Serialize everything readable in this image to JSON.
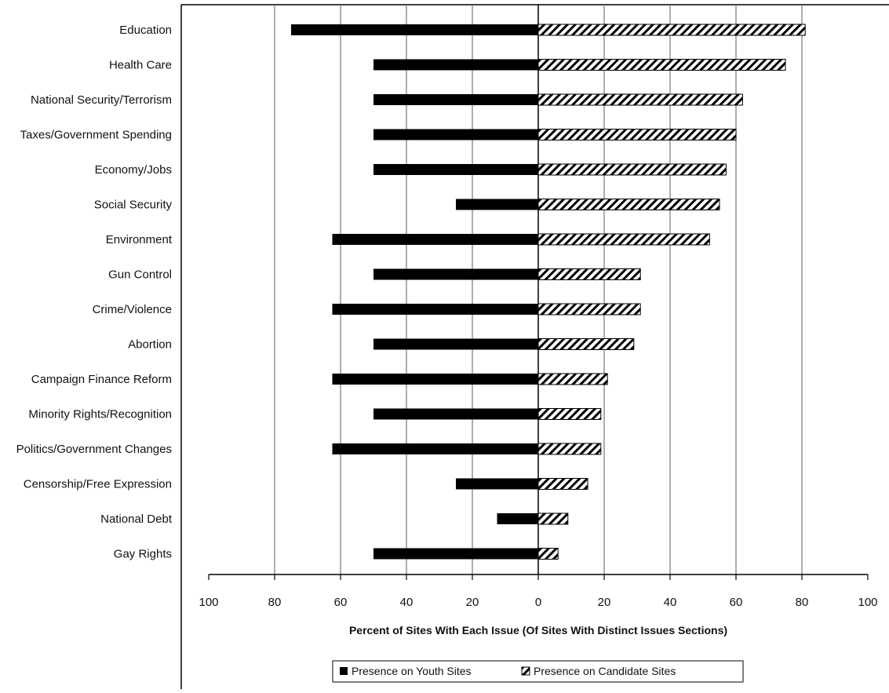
{
  "chart_data": {
    "type": "bar",
    "orientation": "horizontal",
    "layout": "diverging",
    "categories": [
      "Education",
      "Health Care",
      "National Security/Terrorism",
      "Taxes/Government Spending",
      "Economy/Jobs",
      "Social Security",
      "Environment",
      "Gun Control",
      "Crime/Violence",
      "Abortion",
      "Campaign Finance Reform",
      "Minority Rights/Recognition",
      "Politics/Government Changes",
      "Censorship/Free Expression",
      "National Debt",
      "Gay Rights"
    ],
    "series": [
      {
        "name": "Presence on Youth Sites",
        "side": "left",
        "color": "#000000",
        "fill": "solid",
        "values": [
          75,
          50,
          50,
          50,
          50,
          25,
          62.5,
          50,
          62.5,
          50,
          62.5,
          50,
          62.5,
          25,
          12.5,
          50
        ]
      },
      {
        "name": "Presence on Candidate Sites",
        "side": "right",
        "color": "#000000",
        "fill": "diagonal-hatch",
        "values": [
          81,
          75,
          62,
          60,
          57,
          55,
          52,
          31,
          31,
          29,
          21,
          19,
          19,
          15,
          9,
          6
        ]
      }
    ],
    "xlabel": "Percent of Sites With Each Issue (Of Sites With Distinct Issues Sections)",
    "ylabel": "",
    "title": "",
    "xlim": [
      -100,
      100
    ],
    "xticks": [
      "100",
      "80",
      "60",
      "40",
      "20",
      "0",
      "20",
      "40",
      "60",
      "80",
      "100"
    ],
    "grid": "vertical",
    "legend_position": "bottom"
  }
}
